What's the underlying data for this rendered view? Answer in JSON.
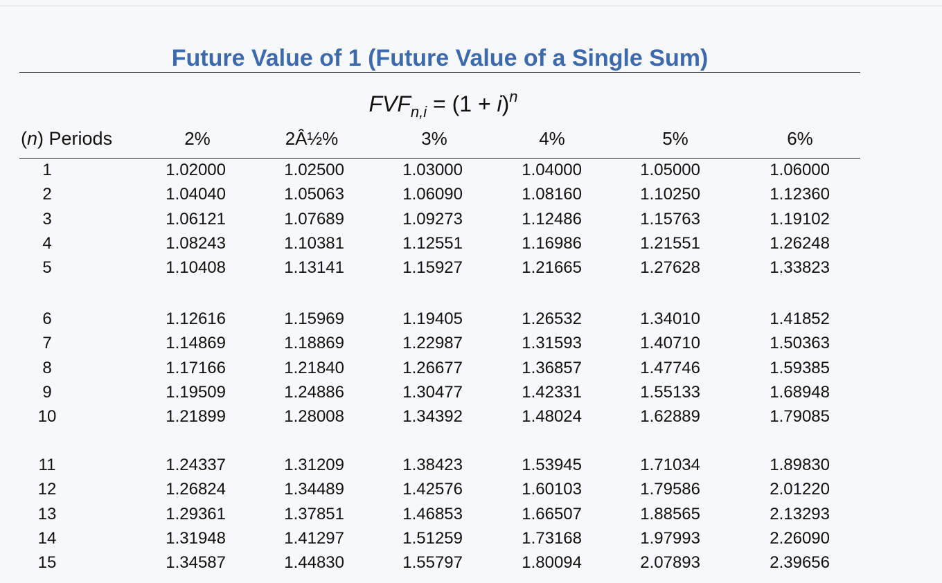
{
  "header": {
    "title": "Future Value of 1 (Future Value of a Single Sum)",
    "formula": {
      "base": "FVF",
      "subscript": "n,i",
      "middle": " = (1 + ",
      "variable": "i",
      "close": ")",
      "exponent": "n"
    }
  },
  "table": {
    "columns": [
      {
        "open": "(",
        "italic": "n",
        "rest": ") Periods"
      },
      "2%",
      "2Â½%",
      "3%",
      "4%",
      "5%",
      "6%"
    ],
    "groups": [
      {
        "rows": [
          [
            "1",
            "1.02000",
            "1.02500",
            "1.03000",
            "1.04000",
            "1.05000",
            "1.06000"
          ],
          [
            "2",
            "1.04040",
            "1.05063",
            "1.06090",
            "1.08160",
            "1.10250",
            "1.12360"
          ],
          [
            "3",
            "1.06121",
            "1.07689",
            "1.09273",
            "1.12486",
            "1.15763",
            "1.19102"
          ],
          [
            "4",
            "1.08243",
            "1.10381",
            "1.12551",
            "1.16986",
            "1.21551",
            "1.26248"
          ],
          [
            "5",
            "1.10408",
            "1.13141",
            "1.15927",
            "1.21665",
            "1.27628",
            "1.33823"
          ]
        ]
      },
      {
        "rows": [
          [
            "6",
            "1.12616",
            "1.15969",
            "1.19405",
            "1.26532",
            "1.34010",
            "1.41852"
          ],
          [
            "7",
            "1.14869",
            "1.18869",
            "1.22987",
            "1.31593",
            "1.40710",
            "1.50363"
          ],
          [
            "8",
            "1.17166",
            "1.21840",
            "1.26677",
            "1.36857",
            "1.47746",
            "1.59385"
          ],
          [
            "9",
            "1.19509",
            "1.24886",
            "1.30477",
            "1.42331",
            "1.55133",
            "1.68948"
          ],
          [
            "10",
            "1.21899",
            "1.28008",
            "1.34392",
            "1.48024",
            "1.62889",
            "1.79085"
          ]
        ]
      },
      {
        "rows": [
          [
            "11",
            "1.24337",
            "1.31209",
            "1.38423",
            "1.53945",
            "1.71034",
            "1.89830"
          ],
          [
            "12",
            "1.26824",
            "1.34489",
            "1.42576",
            "1.60103",
            "1.79586",
            "2.01220"
          ],
          [
            "13",
            "1.29361",
            "1.37851",
            "1.46853",
            "1.66507",
            "1.88565",
            "2.13293"
          ],
          [
            "14",
            "1.31948",
            "1.41297",
            "1.51259",
            "1.73168",
            "1.97993",
            "2.26090"
          ],
          [
            "15",
            "1.34587",
            "1.44830",
            "1.55797",
            "1.80094",
            "2.07893",
            "2.39656"
          ]
        ]
      }
    ]
  }
}
